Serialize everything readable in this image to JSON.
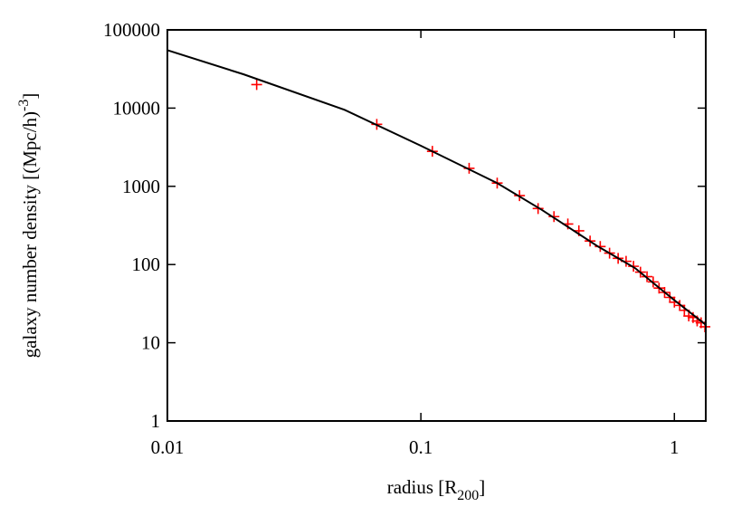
{
  "chart_data": {
    "type": "scatter",
    "xlabel": {
      "main": "radius [R",
      "sub": "200",
      "end": "]"
    },
    "ylabel": {
      "main": "galaxy number density [(Mpc/h)",
      "sup": "-3",
      "end": "]"
    },
    "xscale": "log",
    "yscale": "log",
    "xlim": [
      0.01,
      1.33
    ],
    "ylim": [
      1,
      100000
    ],
    "xticks": [
      0.01,
      0.1,
      1
    ],
    "yticks": [
      1,
      10,
      100,
      1000,
      10000,
      100000
    ],
    "series": [
      {
        "type": "scatter",
        "color": "#ff0000",
        "x": [
          0.0225,
          0.067,
          0.111,
          0.155,
          0.2,
          0.245,
          0.29,
          0.335,
          0.38,
          0.42,
          0.465,
          0.51,
          0.555,
          0.6,
          0.645,
          0.69,
          0.735,
          0.78,
          0.825,
          0.87,
          0.915,
          0.96,
          1.0,
          1.05,
          1.095,
          1.14,
          1.185,
          1.23,
          1.275,
          1.32
        ],
        "values": [
          20000,
          6200,
          2800,
          1700,
          1100,
          760,
          520,
          410,
          330,
          270,
          200,
          170,
          140,
          120,
          110,
          95,
          80,
          70,
          60,
          50,
          44,
          38,
          33,
          30,
          26,
          22,
          21,
          19,
          18,
          16
        ]
      },
      {
        "type": "line",
        "color": "#000000",
        "x": [
          0.01,
          0.02,
          0.05,
          0.1,
          0.2,
          0.3,
          0.5,
          0.7,
          1.0,
          1.33
        ],
        "values": [
          55000,
          27000,
          9500,
          3300,
          1100,
          500,
          170,
          90,
          35,
          17
        ]
      }
    ]
  }
}
